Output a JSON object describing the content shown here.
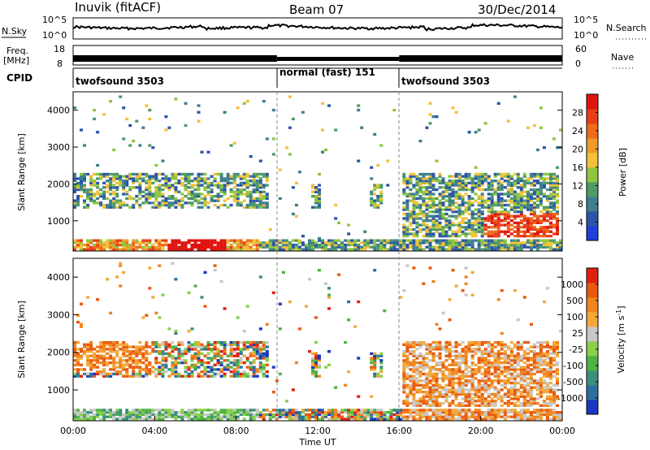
{
  "header": {
    "station": "Inuvik (fitACF)",
    "beam": "Beam 07",
    "date": "30/Dec/2014"
  },
  "top_panels": {
    "nsky_label": "N.Sky",
    "nsky_ticks": [
      "10^5",
      "10^0"
    ],
    "nsearch_label": "N.Search",
    "nsearch_ticks": [
      "10^5",
      "10^0"
    ],
    "freq_label_1": "Freq.",
    "freq_label_2": "[MHz]",
    "freq_ticks": [
      "18",
      "8"
    ],
    "nave_label": "Nave",
    "nave_ticks": [
      "60",
      "0"
    ],
    "cpid_label": "CPID",
    "cpid_segments": [
      {
        "label": "twofsound 3503",
        "start": 0,
        "end": 10
      },
      {
        "label": "normal (fast) 151",
        "start": 10,
        "end": 16
      },
      {
        "label": "twofsound 3503",
        "start": 16,
        "end": 24
      }
    ]
  },
  "colors": {
    "power": [
      "#1f3fd8",
      "#2c55a8",
      "#3f7f8f",
      "#4f9a68",
      "#8ec63f",
      "#f2c23a",
      "#f09a2a",
      "#ee6a1c",
      "#e83d18",
      "#e0140f"
    ],
    "velocity": [
      "#1a37c0",
      "#2d6fa0",
      "#3b8f7a",
      "#4fb244",
      "#8ad04a",
      "#c8c8c8",
      "#f2a93a",
      "#f0841f",
      "#e85a10",
      "#e02010"
    ]
  },
  "chart_data": [
    {
      "type": "heatmap",
      "name": "power",
      "xlabel": "",
      "ylabel": "Slant Range [km]",
      "xlim": [
        0,
        24
      ],
      "ylim": [
        180,
        4500
      ],
      "yticks": [
        "1000",
        "2000",
        "3000",
        "4000"
      ],
      "colorbar": {
        "label": "Power [dB]",
        "ticks": [
          "28",
          "24",
          "20",
          "16",
          "12",
          "8",
          "4"
        ],
        "range": [
          0,
          32
        ]
      }
    },
    {
      "type": "heatmap",
      "name": "velocity",
      "xlabel": "Time UT",
      "ylabel": "Slant Range [km]",
      "xlim": [
        0,
        24
      ],
      "ylim": [
        180,
        4500
      ],
      "xticks": [
        "00:00",
        "04:00",
        "08:00",
        "12:00",
        "16:00",
        "20:00",
        "00:00"
      ],
      "yticks": [
        "1000",
        "2000",
        "3000",
        "4000"
      ],
      "colorbar": {
        "label": "Velocity [m s",
        "label_exp": "-1",
        "label_close": "]",
        "ticks": [
          "1000",
          "500",
          "100",
          "25",
          "-25",
          "-100",
          "-500",
          "-1000"
        ]
      }
    }
  ]
}
